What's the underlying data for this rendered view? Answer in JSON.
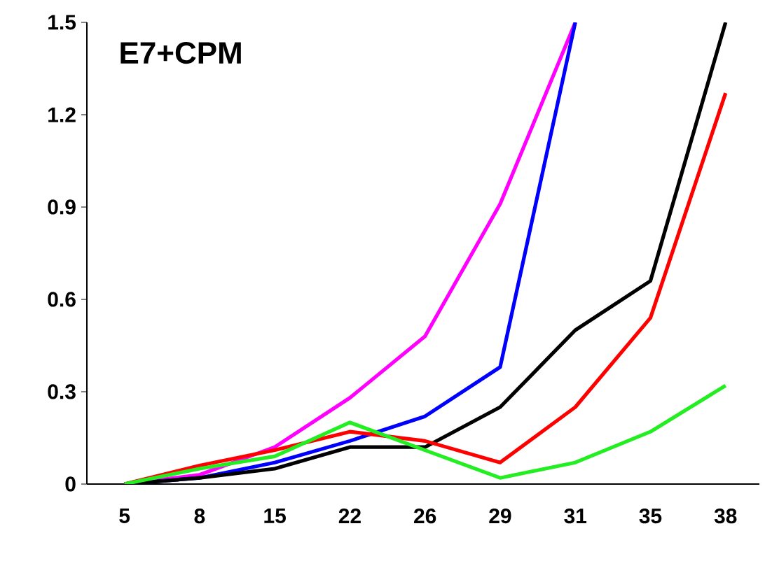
{
  "chart_data": {
    "type": "line",
    "title": "E7+CPM",
    "categories": [
      "5",
      "8",
      "15",
      "22",
      "26",
      "29",
      "31",
      "35",
      "38"
    ],
    "series": [
      {
        "color": "#ff00ff",
        "values": [
          0,
          0.03,
          0.12,
          0.28,
          0.48,
          0.91,
          1.5,
          null,
          null
        ]
      },
      {
        "color": "#0000ff",
        "values": [
          0,
          0.02,
          0.07,
          0.14,
          0.22,
          0.38,
          1.5,
          null,
          null
        ]
      },
      {
        "color": "#000000",
        "values": [
          0,
          0.02,
          0.05,
          0.12,
          0.12,
          0.25,
          0.5,
          0.66,
          1.5
        ]
      },
      {
        "color": "#ff0000",
        "values": [
          0,
          0.06,
          0.11,
          0.17,
          0.14,
          0.07,
          0.25,
          0.54,
          1.27
        ]
      },
      {
        "color": "#22ee22",
        "values": [
          0,
          0.05,
          0.09,
          0.2,
          0.11,
          0.02,
          0.07,
          0.17,
          0.32
        ]
      }
    ],
    "ylim": [
      0,
      1.5
    ],
    "yticks": [
      0,
      0.3,
      0.6,
      0.9,
      1.2,
      1.5
    ],
    "marker": "none",
    "line_style": "solid"
  }
}
